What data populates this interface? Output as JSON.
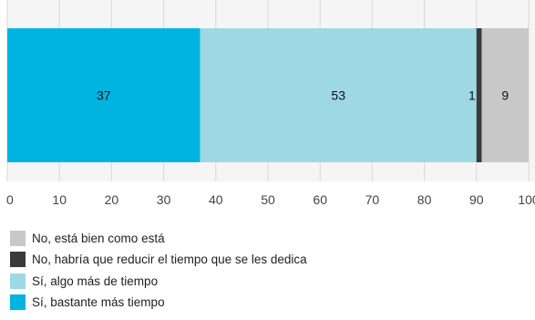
{
  "chart_data": {
    "type": "bar",
    "orientation": "horizontal",
    "stacked": true,
    "categories": [
      ""
    ],
    "series": [
      {
        "name": "Sí, bastante más tiempo",
        "values": [
          37
        ],
        "color": "#00b4e1",
        "label": "37"
      },
      {
        "name": "Sí, algo más de tiempo",
        "values": [
          53
        ],
        "color": "#9ed8e5",
        "label": "53"
      },
      {
        "name": "No, habría que reducir el tiempo que se les dedica",
        "values": [
          1
        ],
        "color": "#3a3a3a",
        "label": "1"
      },
      {
        "name": "No, está bien como está",
        "values": [
          9
        ],
        "color": "#c8c8c8",
        "label": "9"
      }
    ],
    "xlim": [
      0,
      100
    ],
    "xticks": [
      "0",
      "10",
      "20",
      "30",
      "40",
      "50",
      "60",
      "70",
      "80",
      "90",
      "100"
    ],
    "grid": true,
    "legend_position": "bottom",
    "legend_order": [
      "No, está bien como está",
      "No, habría que reducir el tiempo que se les dedica",
      "Sí, algo más de tiempo",
      "Sí, bastante más tiempo"
    ],
    "colors": {
      "plot_background": "#f5f5f5",
      "gridline": "#d8d8d8",
      "tick_label": "#444444"
    }
  }
}
